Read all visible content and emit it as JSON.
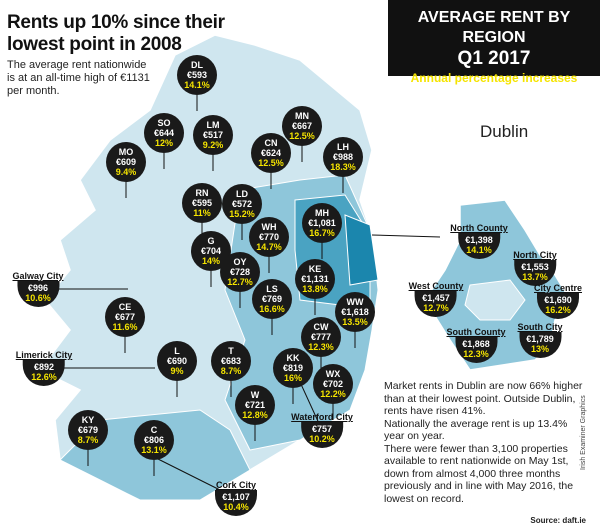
{
  "headline": "Rents up 10% since their lowest point in 2008",
  "subtext": "The average rent nationwide is at an all-time high of €1131 per month.",
  "title_box": {
    "line1": "AVERAGE RENT BY REGION",
    "line2": "Q1 2017",
    "line3": "Annual percentage increases"
  },
  "colors": {
    "light": "#cfe6ef",
    "mid": "#8ec6da",
    "dark": "#4aa3c2",
    "darkest": "#1b86ad",
    "marker": "#1a1a1a",
    "pct": "#f5e400"
  },
  "counties": [
    {
      "code": "DL",
      "rent": "€593",
      "pct": "14.1%"
    },
    {
      "code": "MO",
      "rent": "€609",
      "pct": "9.4%"
    },
    {
      "code": "SO",
      "rent": "€644",
      "pct": "12%"
    },
    {
      "code": "LM",
      "rent": "€517",
      "pct": "9.2%"
    },
    {
      "code": "MN",
      "rent": "€667",
      "pct": "12.5%"
    },
    {
      "code": "CN",
      "rent": "€624",
      "pct": "12.5%"
    },
    {
      "code": "LH",
      "rent": "€988",
      "pct": "18.3%"
    },
    {
      "code": "RN",
      "rent": "€595",
      "pct": "11%"
    },
    {
      "code": "LD",
      "rent": "€572",
      "pct": "15.2%"
    },
    {
      "code": "MH",
      "rent": "€1,081",
      "pct": "16.7%"
    },
    {
      "code": "WH",
      "rent": "€770",
      "pct": "14.7%"
    },
    {
      "code": "G",
      "rent": "€704",
      "pct": "14%"
    },
    {
      "code": "OY",
      "rent": "€728",
      "pct": "12.7%"
    },
    {
      "code": "KE",
      "rent": "€1,131",
      "pct": "13.8%"
    },
    {
      "code": "LS",
      "rent": "€769",
      "pct": "16.6%"
    },
    {
      "code": "WW",
      "rent": "€1,618",
      "pct": "13.5%"
    },
    {
      "code": "CE",
      "rent": "€677",
      "pct": "11.6%"
    },
    {
      "code": "CW",
      "rent": "€777",
      "pct": "12.3%"
    },
    {
      "code": "L",
      "rent": "€690",
      "pct": "9%"
    },
    {
      "code": "T",
      "rent": "€683",
      "pct": "8.7%"
    },
    {
      "code": "KK",
      "rent": "€819",
      "pct": "16%"
    },
    {
      "code": "WX",
      "rent": "€702",
      "pct": "12.2%"
    },
    {
      "code": "W",
      "rent": "€721",
      "pct": "12.8%"
    },
    {
      "code": "KY",
      "rent": "€679",
      "pct": "8.7%"
    },
    {
      "code": "C",
      "rent": "€806",
      "pct": "13.1%"
    }
  ],
  "cities": [
    {
      "name": "Galway City",
      "rent": "€996",
      "pct": "10.6%"
    },
    {
      "name": "Limerick City",
      "rent": "€892",
      "pct": "12.6%"
    },
    {
      "name": "Waterford City",
      "rent": "€757",
      "pct": "10.2%"
    },
    {
      "name": "Cork City",
      "rent": "€1,107",
      "pct": "10.4%"
    }
  ],
  "dublin": {
    "label": "Dublin",
    "areas": [
      {
        "name": "North County",
        "rent": "€1,398",
        "pct": "14.1%"
      },
      {
        "name": "North City",
        "rent": "€1,553",
        "pct": "13.7%"
      },
      {
        "name": "City Centre",
        "rent": "€1,690",
        "pct": "16.2%"
      },
      {
        "name": "West County",
        "rent": "€1,457",
        "pct": "12.7%"
      },
      {
        "name": "South City",
        "rent": "€1,789",
        "pct": "13%"
      },
      {
        "name": "South County",
        "rent": "€1,868",
        "pct": "12.3%"
      }
    ]
  },
  "notes": [
    "Market rents in Dublin are now 66% higher than at their lowest point. Outside Dublin, rents have risen 41%.",
    "Nationally the average rent is up 13.4% year on year.",
    "There were fewer than 3,100 properties available to rent nationwide on May 1st, down from almost 4,000 three months previously and in line with May 2016, the lowest on record."
  ],
  "source": "Source: daft.ie",
  "credit": "Irish Examiner Graphics"
}
